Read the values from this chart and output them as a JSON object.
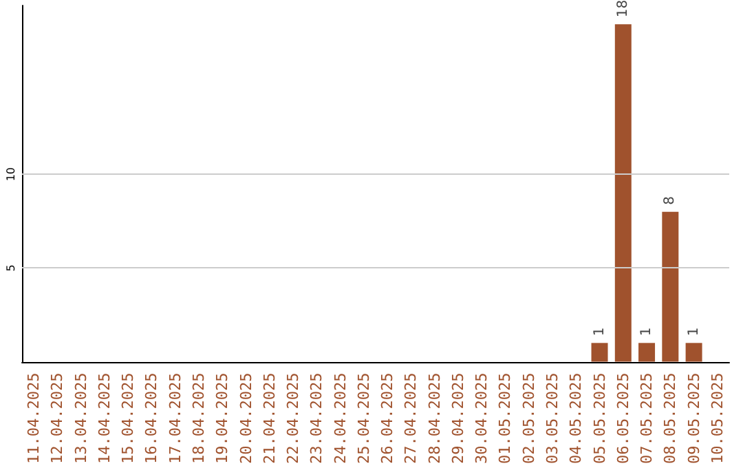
{
  "chart_data": {
    "type": "bar",
    "categories": [
      "11.04.2025",
      "12.04.2025",
      "13.04.2025",
      "14.04.2025",
      "15.04.2025",
      "16.04.2025",
      "17.04.2025",
      "18.04.2025",
      "19.04.2025",
      "20.04.2025",
      "21.04.2025",
      "22.04.2025",
      "23.04.2025",
      "24.04.2025",
      "25.04.2025",
      "26.04.2025",
      "27.04.2025",
      "28.04.2025",
      "29.04.2025",
      "30.04.2025",
      "01.05.2025",
      "02.05.2025",
      "03.05.2025",
      "04.05.2025",
      "05.05.2025",
      "06.05.2025",
      "07.05.2025",
      "08.05.2025",
      "09.05.2025",
      "10.05.2025"
    ],
    "values": [
      0,
      0,
      0,
      0,
      0,
      0,
      0,
      0,
      0,
      0,
      0,
      0,
      0,
      0,
      0,
      0,
      0,
      0,
      0,
      0,
      0,
      0,
      0,
      0,
      1,
      18,
      1,
      8,
      1,
      0
    ],
    "value_labels": [
      null,
      null,
      null,
      null,
      null,
      null,
      null,
      null,
      null,
      null,
      null,
      null,
      null,
      null,
      null,
      null,
      null,
      null,
      null,
      null,
      null,
      null,
      null,
      null,
      "1",
      "18",
      "1",
      "8",
      "1",
      null
    ],
    "color": "#a0522d",
    "ylim": [
      0,
      19
    ],
    "yticks": [
      5,
      10
    ],
    "grid": "y"
  }
}
